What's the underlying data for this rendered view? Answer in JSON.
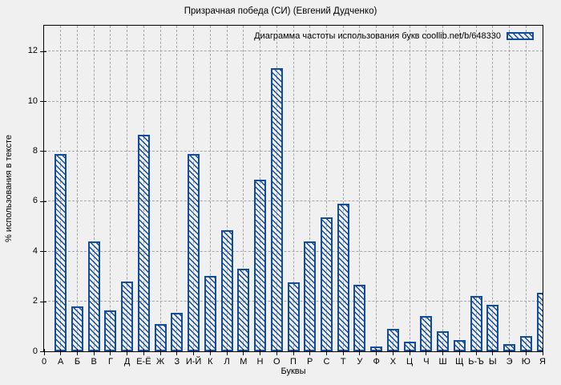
{
  "title": "Призрачная победа (СИ) (Евгений Дудченко)",
  "legend": {
    "label": "Диаграмма частоты использования букв coollib.net/b/648330",
    "swatch": "hatched-bar-sample"
  },
  "axes": {
    "x_label": "Буквы",
    "y_label": "% использования в тексте",
    "y_ticks": [
      0,
      2,
      4,
      6,
      8,
      10,
      12
    ]
  },
  "colors": {
    "bar_blue": "#114c9e",
    "background": "#f0f0f0",
    "grid": "#a6a6a6",
    "axis": "#000000"
  },
  "chart_data": {
    "type": "bar",
    "title": "Призрачная победа (СИ) (Евгений Дудченко)",
    "legend_entry": "Диаграмма частоты использования букв coollib.net/b/648330",
    "xlabel": "Буквы",
    "ylabel": "% использования в тексте",
    "ylim": [
      0,
      13
    ],
    "y_tick_step": 2,
    "grid": true,
    "bar_style": "blue diagonal hatch, unfilled",
    "categories": [
      "0",
      "А",
      "Б",
      "В",
      "Г",
      "Д",
      "Е-Ё",
      "Ж",
      "З",
      "И-Й",
      "К",
      "Л",
      "М",
      "Н",
      "О",
      "П",
      "Р",
      "С",
      "Т",
      "У",
      "Ф",
      "Х",
      "Ц",
      "Ч",
      "Ш",
      "Щ",
      "Ь-Ъ",
      "Ы",
      "Э",
      "Ю",
      "Я"
    ],
    "values": [
      null,
      7.9,
      1.8,
      4.4,
      1.65,
      2.8,
      8.65,
      1.1,
      1.55,
      7.9,
      3.0,
      4.85,
      3.3,
      6.85,
      11.3,
      2.75,
      4.4,
      5.35,
      5.9,
      2.65,
      0.2,
      0.9,
      0.4,
      1.4,
      0.8,
      0.45,
      2.2,
      1.85,
      0.3,
      0.6,
      2.35
    ]
  }
}
